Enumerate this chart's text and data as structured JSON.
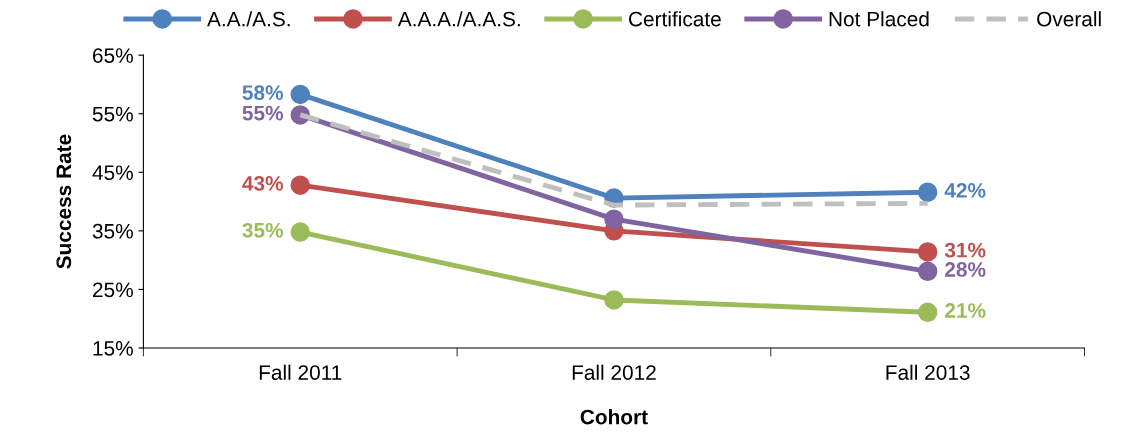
{
  "chart_data": {
    "type": "line",
    "xlabel": "Cohort",
    "ylabel": "Success Rate",
    "categories": [
      "Fall 2011",
      "Fall 2012",
      "Fall 2013"
    ],
    "series": [
      {
        "name": "A.A./A.S.",
        "color": "#4f81bd",
        "values": [
          58.3,
          40.6,
          41.6
        ],
        "value_labels": [
          "58%",
          null,
          "42%"
        ],
        "marker": "circle",
        "line_style": "solid"
      },
      {
        "name": "A.A.A./A.A.S.",
        "color": "#c0504d",
        "values": [
          42.8,
          35.0,
          31.4
        ],
        "value_labels": [
          "43%",
          null,
          "31%"
        ],
        "marker": "circle",
        "line_style": "solid"
      },
      {
        "name": "Certificate",
        "color": "#9bbb59",
        "values": [
          34.8,
          23.2,
          21.1
        ],
        "value_labels": [
          "35%",
          null,
          "21%"
        ],
        "marker": "circle",
        "line_style": "solid"
      },
      {
        "name": "Not Placed",
        "color": "#8064a2",
        "values": [
          54.8,
          37.0,
          28.1
        ],
        "value_labels": [
          "55%",
          null,
          "28%"
        ],
        "marker": "circle",
        "line_style": "solid"
      },
      {
        "name": "Overall",
        "color": "#bfbfbf",
        "values": [
          54.8,
          39.4,
          39.7
        ],
        "marker": "none",
        "line_style": "dashed"
      }
    ],
    "ylim": [
      15,
      65
    ],
    "yticks": [
      {
        "value": 15,
        "label": "15%"
      },
      {
        "value": 25,
        "label": "25%"
      },
      {
        "value": 35,
        "label": "35%"
      },
      {
        "value": 45,
        "label": "45%"
      },
      {
        "value": 55,
        "label": "55%"
      },
      {
        "value": 65,
        "label": "65%"
      }
    ],
    "grid": false,
    "legend": "top"
  }
}
